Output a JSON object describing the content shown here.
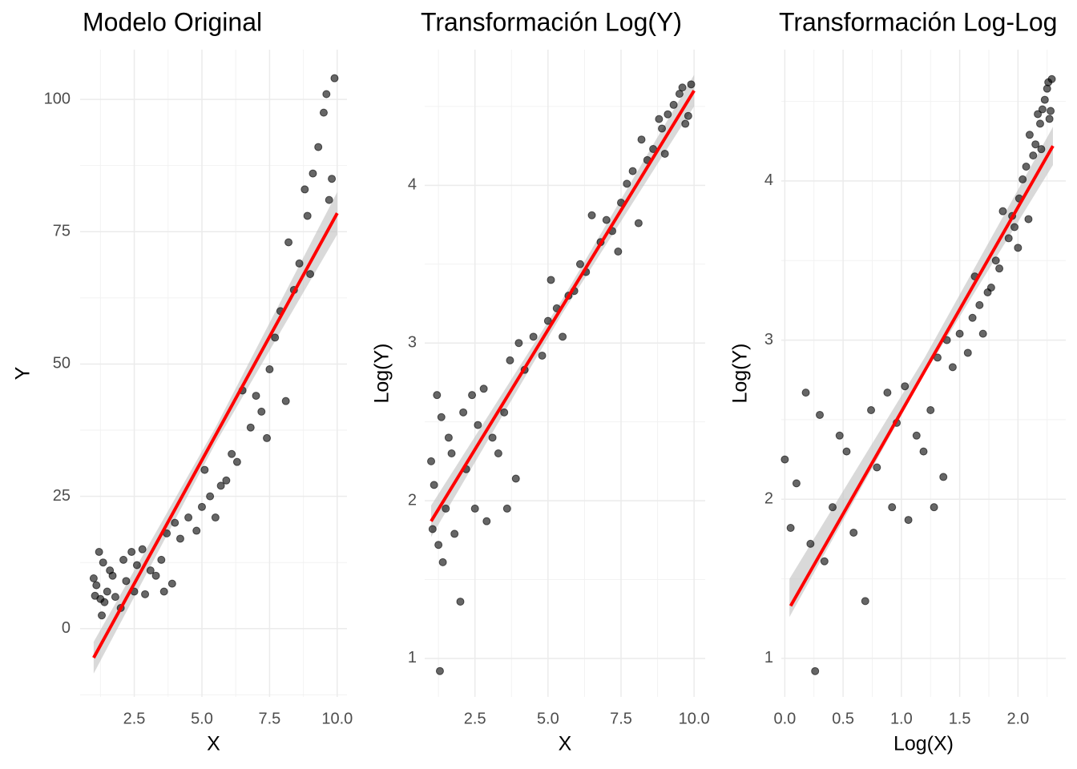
{
  "chart_data": [
    {
      "type": "scatter",
      "title": "Modelo Original",
      "x_label": "X",
      "y_label": "Y",
      "x": [
        1.0,
        1.05,
        1.1,
        1.2,
        1.25,
        1.3,
        1.35,
        1.4,
        1.5,
        1.6,
        1.7,
        1.8,
        2.0,
        2.1,
        2.2,
        2.4,
        2.5,
        2.6,
        2.8,
        2.9,
        3.1,
        3.3,
        3.5,
        3.6,
        3.7,
        3.9,
        4.0,
        4.2,
        4.5,
        4.8,
        5.0,
        5.1,
        5.3,
        5.5,
        5.7,
        5.9,
        6.1,
        6.3,
        6.5,
        6.8,
        7.0,
        7.2,
        7.4,
        7.5,
        7.7,
        7.9,
        8.1,
        8.2,
        8.4,
        8.6,
        8.8,
        9.0,
        9.1,
        9.3,
        9.5,
        9.6,
        9.8,
        9.9,
        9.7,
        8.9
      ],
      "values": [
        9.5,
        6.2,
        8.2,
        14.5,
        5.6,
        2.5,
        12.5,
        5.0,
        7.0,
        11.0,
        10.0,
        6.0,
        3.9,
        13.0,
        9.0,
        14.5,
        7.0,
        12.0,
        15.0,
        6.5,
        11.0,
        10.0,
        13.0,
        7.0,
        18.0,
        8.5,
        20.0,
        17.0,
        21.0,
        18.5,
        23.0,
        30.0,
        25.0,
        21.0,
        27.0,
        28.0,
        33.0,
        31.5,
        45.0,
        38.0,
        44.0,
        41.0,
        36.0,
        49.0,
        55.0,
        60.0,
        43.0,
        73.0,
        64.0,
        69.0,
        83.0,
        67.0,
        86.0,
        91.0,
        97.5,
        101.0,
        85.0,
        104.0,
        81.0,
        78.0
      ],
      "point_color": "#000000",
      "fit": {
        "x": [
          1,
          10
        ],
        "values": [
          -5.5,
          78.5
        ],
        "color": "#ff0000"
      },
      "band": {
        "x": [
          1,
          5.5,
          10
        ],
        "lower": [
          -8.5,
          35,
          74.5
        ],
        "upper": [
          -2.5,
          38,
          82.5
        ],
        "color": "#bfbfbf"
      },
      "xlim": [
        0.5,
        10.36
      ],
      "ylim": [
        -12.9,
        109.4
      ],
      "xticks": [
        2.5,
        {
          "value": 5,
          "label": "5.0"
        },
        7.5,
        {
          "value": 10,
          "label": "10.0"
        }
      ],
      "yticks": [
        0,
        25,
        50,
        75,
        100
      ],
      "xminor": [
        1.25,
        3.75,
        6.25,
        8.75
      ],
      "yminor": [
        -12.5,
        12.5,
        37.5,
        62.5,
        87.5
      ],
      "grid": true
    },
    {
      "type": "scatter",
      "title": "Transformación Log(Y)",
      "x_label": "X",
      "y_label": "Log(Y)",
      "x": [
        1.0,
        1.05,
        1.1,
        1.2,
        1.25,
        1.3,
        1.35,
        1.4,
        1.5,
        1.6,
        1.7,
        1.8,
        2.0,
        2.1,
        2.2,
        2.4,
        2.5,
        2.6,
        2.8,
        2.9,
        3.1,
        3.3,
        3.5,
        3.6,
        3.7,
        3.9,
        4.0,
        4.2,
        4.5,
        4.8,
        5.0,
        5.1,
        5.3,
        5.5,
        5.7,
        5.9,
        6.1,
        6.3,
        6.5,
        6.8,
        7.0,
        7.2,
        7.4,
        7.5,
        7.7,
        7.9,
        8.1,
        8.2,
        8.4,
        8.6,
        8.8,
        9.0,
        9.1,
        9.3,
        9.5,
        9.6,
        9.8,
        9.9,
        9.7,
        8.9
      ],
      "values": [
        2.25,
        1.82,
        2.1,
        2.67,
        1.72,
        0.92,
        2.53,
        1.61,
        1.95,
        2.4,
        2.3,
        1.79,
        1.36,
        2.56,
        2.2,
        2.67,
        1.95,
        2.48,
        2.71,
        1.87,
        2.4,
        2.3,
        2.56,
        1.95,
        2.89,
        2.14,
        3.0,
        2.83,
        3.04,
        2.92,
        3.14,
        3.4,
        3.22,
        3.04,
        3.3,
        3.33,
        3.5,
        3.45,
        3.81,
        3.64,
        3.78,
        3.71,
        3.58,
        3.89,
        4.01,
        4.09,
        3.76,
        4.29,
        4.16,
        4.23,
        4.42,
        4.2,
        4.45,
        4.51,
        4.58,
        4.62,
        4.44,
        4.64,
        4.39,
        4.36
      ],
      "point_color": "#000000",
      "fit": {
        "x": [
          1,
          10
        ],
        "values": [
          1.87,
          4.6
        ],
        "color": "#ff0000"
      },
      "band": {
        "x": [
          1,
          5.5,
          10
        ],
        "lower": [
          1.77,
          3.19,
          4.5
        ],
        "upper": [
          1.97,
          3.28,
          4.7
        ],
        "color": "#bfbfbf"
      },
      "xlim": [
        0.78,
        10.38
      ],
      "ylim": [
        0.756,
        4.86
      ],
      "xticks": [
        2.5,
        {
          "value": 5,
          "label": "5.0"
        },
        7.5,
        {
          "value": 10,
          "label": "10.0"
        }
      ],
      "yticks": [
        1,
        2,
        3,
        4
      ],
      "xminor": [
        1.25,
        3.75,
        6.25,
        8.75
      ],
      "yminor": [
        1.5,
        2.5,
        3.5,
        4.5
      ],
      "grid": true
    },
    {
      "type": "scatter",
      "title": "Transformación Log-Log",
      "x_label": "Log(X)",
      "y_label": "Log(Y)",
      "x": [
        0,
        0.05,
        0.1,
        0.18,
        0.22,
        0.26,
        0.3,
        0.34,
        0.41,
        0.47,
        0.53,
        0.59,
        0.69,
        0.74,
        0.79,
        0.88,
        0.92,
        0.96,
        1.03,
        1.06,
        1.13,
        1.19,
        1.25,
        1.28,
        1.31,
        1.36,
        1.39,
        1.44,
        1.5,
        1.57,
        1.61,
        1.63,
        1.67,
        1.7,
        1.74,
        1.77,
        1.81,
        1.84,
        1.87,
        1.92,
        1.95,
        1.97,
        2.0,
        2.01,
        2.04,
        2.07,
        2.09,
        2.1,
        2.13,
        2.15,
        2.17,
        2.2,
        2.21,
        2.23,
        2.25,
        2.26,
        2.28,
        2.29,
        2.27,
        2.19
      ],
      "values": [
        2.25,
        1.82,
        2.1,
        2.67,
        1.72,
        0.92,
        2.53,
        1.61,
        1.95,
        2.4,
        2.3,
        1.79,
        1.36,
        2.56,
        2.2,
        2.67,
        1.95,
        2.48,
        2.71,
        1.87,
        2.4,
        2.3,
        2.56,
        1.95,
        2.89,
        2.14,
        3.0,
        2.83,
        3.04,
        2.92,
        3.14,
        3.4,
        3.22,
        3.04,
        3.3,
        3.33,
        3.5,
        3.45,
        3.81,
        3.64,
        3.78,
        3.71,
        3.58,
        3.89,
        4.01,
        4.09,
        3.76,
        4.29,
        4.16,
        4.23,
        4.42,
        4.2,
        4.45,
        4.51,
        4.58,
        4.62,
        4.44,
        4.64,
        4.39,
        4.36
      ],
      "point_color": "#000000",
      "fit": {
        "x": [
          0.05,
          2.3
        ],
        "values": [
          1.33,
          4.22
        ],
        "color": "#ff0000"
      },
      "band": {
        "x": [
          0.04,
          1.2,
          2.3
        ],
        "lower": [
          1.26,
          2.79,
          4.1
        ],
        "upper": [
          1.5,
          2.89,
          4.34
        ],
        "color": "#bfbfbf"
      },
      "xlim": [
        -0.03,
        2.41
      ],
      "ylim": [
        0.758,
        4.825
      ],
      "xticks": [
        {
          "value": 0,
          "label": "0.0"
        },
        0.5,
        {
          "value": 1,
          "label": "1.0"
        },
        1.5,
        {
          "value": 2,
          "label": "2.0"
        }
      ],
      "yticks": [
        1,
        2,
        3,
        4
      ],
      "xminor": [
        0.25,
        0.75,
        1.25,
        1.75,
        2.25
      ],
      "yminor": [
        1.5,
        2.5,
        3.5,
        4.5
      ],
      "grid": true
    }
  ]
}
